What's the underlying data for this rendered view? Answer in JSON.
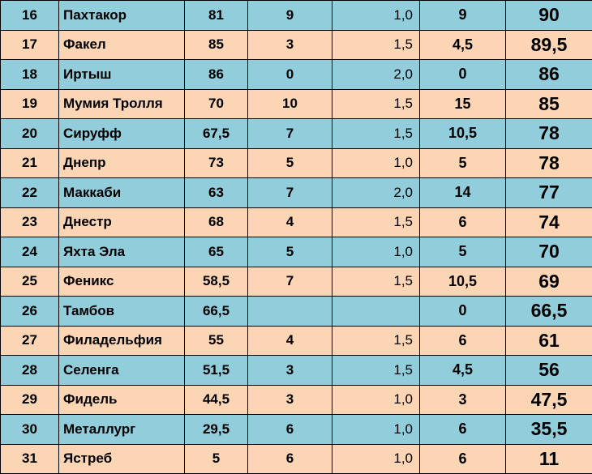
{
  "table": {
    "rows": [
      {
        "rank": "16",
        "name": "Пахтакор",
        "a": "81",
        "b": "9",
        "c": "1,0",
        "d": "9",
        "total": "90",
        "color": "#92cddc"
      },
      {
        "rank": "17",
        "name": "Факел",
        "a": "85",
        "b": "3",
        "c": "1,5",
        "d": "4,5",
        "total": "89,5",
        "color": "#fcd5b4"
      },
      {
        "rank": "18",
        "name": "Иртыш",
        "a": "86",
        "b": "0",
        "c": "2,0",
        "d": "0",
        "total": "86",
        "color": "#92cddc"
      },
      {
        "rank": "19",
        "name": "Мумия Тролля",
        "a": "70",
        "b": "10",
        "c": "1,5",
        "d": "15",
        "total": "85",
        "color": "#fcd5b4"
      },
      {
        "rank": "20",
        "name": "Сируфф",
        "a": "67,5",
        "b": "7",
        "c": "1,5",
        "d": "10,5",
        "total": "78",
        "color": "#92cddc"
      },
      {
        "rank": "21",
        "name": "Днепр",
        "a": "73",
        "b": "5",
        "c": "1,0",
        "d": "5",
        "total": "78",
        "color": "#fcd5b4"
      },
      {
        "rank": "22",
        "name": "Маккаби",
        "a": "63",
        "b": "7",
        "c": "2,0",
        "d": "14",
        "total": "77",
        "color": "#92cddc"
      },
      {
        "rank": "23",
        "name": "Днестр",
        "a": "68",
        "b": "4",
        "c": "1,5",
        "d": "6",
        "total": "74",
        "color": "#fcd5b4"
      },
      {
        "rank": "24",
        "name": "Яхта Эла",
        "a": "65",
        "b": "5",
        "c": "1,0",
        "d": "5",
        "total": "70",
        "color": "#92cddc"
      },
      {
        "rank": "25",
        "name": "Феникс",
        "a": "58,5",
        "b": "7",
        "c": "1,5",
        "d": "10,5",
        "total": "69",
        "color": "#fcd5b4"
      },
      {
        "rank": "26",
        "name": "Тамбов",
        "a": "66,5",
        "b": "",
        "c": "",
        "d": "0",
        "total": "66,5",
        "color": "#92cddc"
      },
      {
        "rank": "27",
        "name": "Филадельфия",
        "a": "55",
        "b": "4",
        "c": "1,5",
        "d": "6",
        "total": "61",
        "color": "#fcd5b4"
      },
      {
        "rank": "28",
        "name": "Селенга",
        "a": "51,5",
        "b": "3",
        "c": "1,5",
        "d": "4,5",
        "total": "56",
        "color": "#92cddc"
      },
      {
        "rank": "29",
        "name": "Фидель",
        "a": "44,5",
        "b": "3",
        "c": "1,0",
        "d": "3",
        "total": "47,5",
        "color": "#fcd5b4"
      },
      {
        "rank": "30",
        "name": "Металлург",
        "a": "29,5",
        "b": "6",
        "c": "1,0",
        "d": "6",
        "total": "35,5",
        "color": "#92cddc"
      },
      {
        "rank": "31",
        "name": "Ястреб",
        "a": "5",
        "b": "6",
        "c": "1,0",
        "d": "6",
        "total": "11",
        "color": "#fcd5b4"
      }
    ]
  }
}
